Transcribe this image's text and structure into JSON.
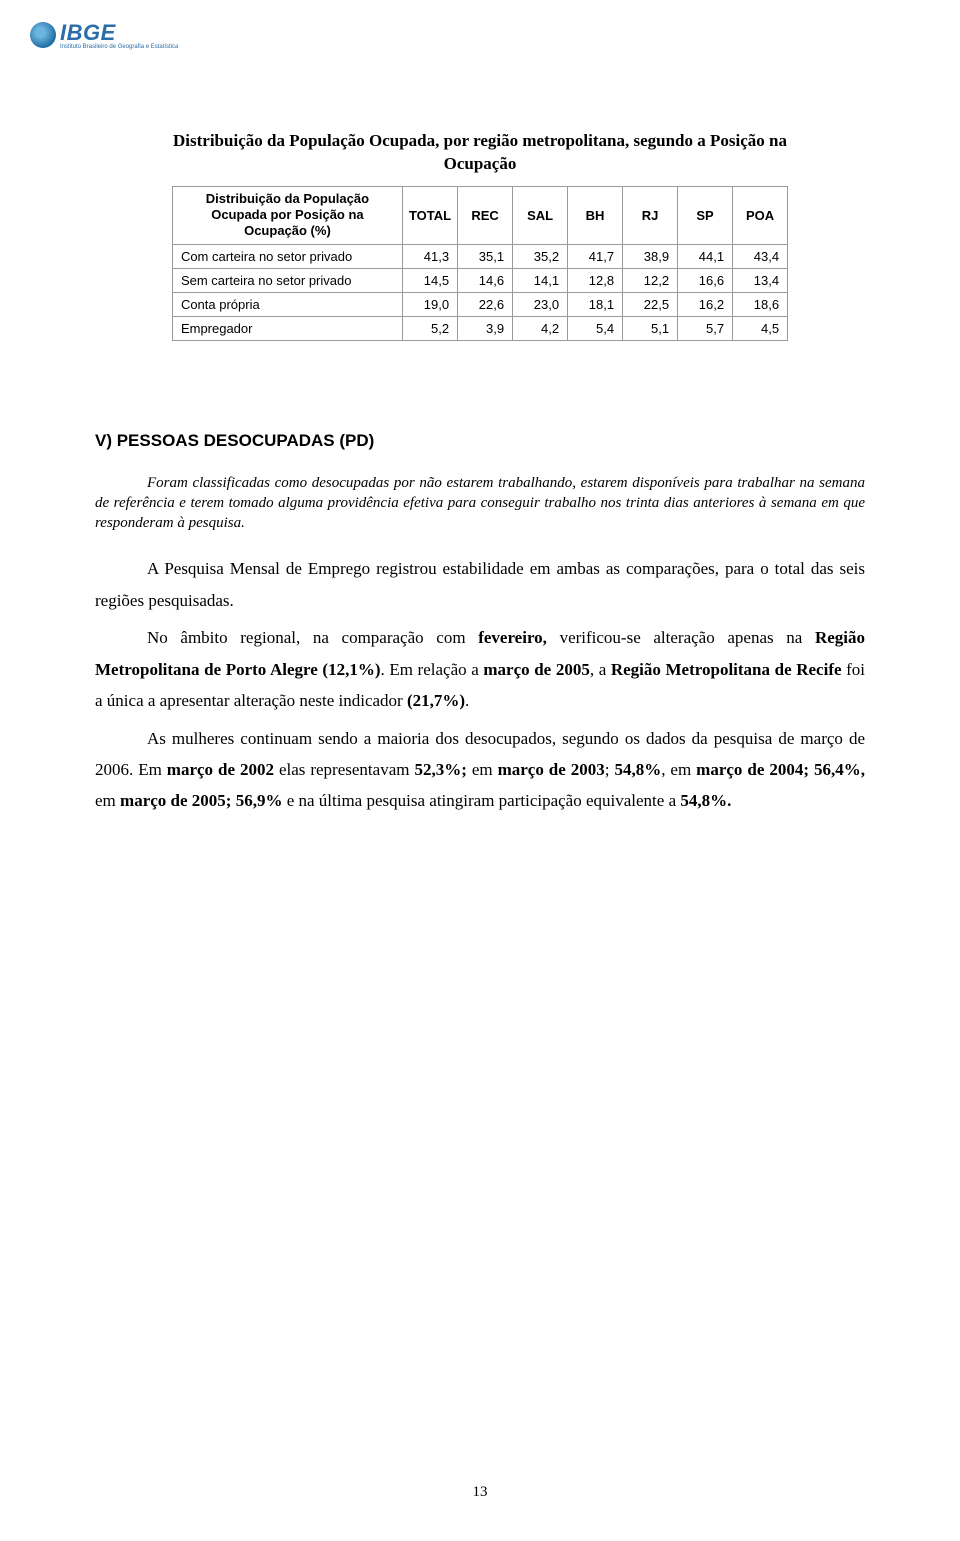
{
  "logo": {
    "text": "IBGE",
    "subtitle": "Instituto Brasileiro de Geografia e Estatística"
  },
  "table": {
    "title_line1": "Distribuição da População Ocupada, por região metropolitana, segundo a Posição na",
    "title_line2": "Ocupação",
    "row_header": "Distribuição da População Ocupada por Posição na Ocupação (%)",
    "columns": [
      "TOTAL",
      "REC",
      "SAL",
      "BH",
      "RJ",
      "SP",
      "POA"
    ],
    "rows": [
      {
        "label": "Com carteira no setor privado",
        "values": [
          "41,3",
          "35,1",
          "35,2",
          "41,7",
          "38,9",
          "44,1",
          "43,4"
        ]
      },
      {
        "label": "Sem carteira no setor privado",
        "values": [
          "14,5",
          "14,6",
          "14,1",
          "12,8",
          "12,2",
          "16,6",
          "13,4"
        ]
      },
      {
        "label": "Conta própria",
        "values": [
          "19,0",
          "22,6",
          "23,0",
          "18,1",
          "22,5",
          "16,2",
          "18,6"
        ]
      },
      {
        "label": "Empregador",
        "values": [
          "5,2",
          "3,9",
          "4,2",
          "5,4",
          "5,1",
          "5,7",
          "4,5"
        ]
      }
    ],
    "border_color": "#9a9a9a",
    "font_family": "Arial",
    "header_fontsize": 13,
    "cell_fontsize": 13
  },
  "section": {
    "heading": "V) PESSOAS DESOCUPADAS (PD)",
    "definition": "Foram classificadas como desocupadas por não estarem trabalhando, estarem disponíveis para trabalhar na semana de referência e terem tomado alguma providência efetiva para conseguir trabalho nos trinta dias anteriores à semana em que responderam à pesquisa."
  },
  "paragraphs": {
    "p1_a": "A Pesquisa Mensal de Emprego registrou estabilidade em ambas as comparações, para o total das seis regiões pesquisadas.",
    "p2_a": "No âmbito regional, na comparação com ",
    "p2_b": "fevereiro,",
    "p2_c": " verificou-se alteração apenas na ",
    "p2_d": "Região Metropolitana de Porto Alegre (12,1%)",
    "p2_e": ". Em relação a ",
    "p2_f": "março de 2005",
    "p2_g": ", a ",
    "p2_h": "Região Metropolitana de Recife",
    "p2_i": " foi a única a apresentar alteração neste indicador ",
    "p2_j": "(21,7%)",
    "p2_k": ".",
    "p3_a": "As mulheres continuam sendo a maioria dos desocupados, segundo os dados da pesquisa de março de 2006. Em ",
    "p3_b": "março de 2002",
    "p3_c": " elas representavam ",
    "p3_d": "52,3%;",
    "p3_e": " em ",
    "p3_f": "março de 2003",
    "p3_g": "; ",
    "p3_h": "54,8%",
    "p3_i": ", em ",
    "p3_j": "março de 2004; 56,4%,",
    "p3_k": " em ",
    "p3_l": "março de 2005; 56,9%",
    "p3_m": " e na última pesquisa atingiram participação equivalente a ",
    "p3_n": "54,8%.",
    "p3_o": ""
  },
  "page_number": "13",
  "colors": {
    "text": "#000000",
    "background": "#ffffff",
    "logo_blue": "#2a6da8"
  }
}
